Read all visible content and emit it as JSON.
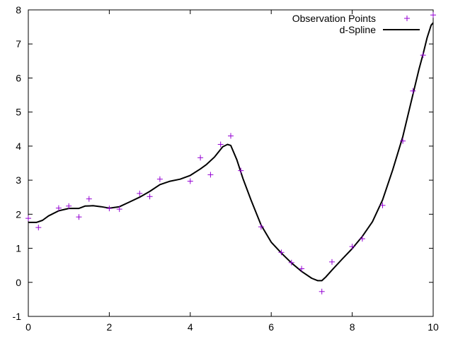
{
  "chart_data": {
    "type": "scatter",
    "title": "",
    "xlabel": "",
    "ylabel": "",
    "xlim": [
      0,
      10
    ],
    "ylim": [
      -1,
      8
    ],
    "x_ticks": [
      "0",
      "2",
      "4",
      "6",
      "8",
      "10"
    ],
    "y_ticks": [
      "-1",
      "0",
      "1",
      "2",
      "3",
      "4",
      "5",
      "6",
      "7",
      "8"
    ],
    "grid": false,
    "legend_position": "top-right",
    "colors": {
      "points": "#9400d3",
      "line": "#000000"
    },
    "series": [
      {
        "name": "Observation Points",
        "type": "scatter",
        "x": [
          0,
          0.25,
          0.75,
          1.0,
          1.25,
          1.5,
          2.0,
          2.25,
          2.75,
          3.0,
          3.25,
          4.0,
          4.25,
          4.5,
          4.75,
          5.0,
          5.25,
          5.75,
          6.25,
          6.5,
          6.75,
          7.25,
          7.5,
          8.0,
          8.25,
          8.75,
          9.25,
          9.5,
          9.75,
          10.0
        ],
        "y": [
          1.88,
          1.61,
          2.18,
          2.24,
          1.92,
          2.45,
          2.17,
          2.15,
          2.61,
          2.52,
          3.03,
          2.97,
          3.66,
          3.16,
          4.05,
          4.3,
          3.28,
          1.63,
          0.88,
          0.58,
          0.4,
          -0.27,
          0.6,
          1.05,
          1.28,
          2.26,
          4.15,
          5.62,
          6.67,
          7.85
        ]
      },
      {
        "name": "d-Spline",
        "type": "line",
        "x": [
          0,
          0.2,
          0.35,
          0.5,
          0.75,
          1.0,
          1.25,
          1.4,
          1.6,
          1.8,
          2.0,
          2.25,
          2.5,
          2.75,
          3.0,
          3.25,
          3.5,
          3.75,
          4.0,
          4.25,
          4.4,
          4.6,
          4.8,
          4.92,
          5.0,
          5.15,
          5.3,
          5.5,
          5.75,
          6.0,
          6.25,
          6.5,
          6.75,
          7.0,
          7.15,
          7.25,
          7.35,
          7.5,
          7.75,
          8.0,
          8.25,
          8.5,
          8.75,
          9.0,
          9.25,
          9.5,
          9.65,
          9.75,
          9.85,
          9.95,
          10.0
        ],
        "y": [
          1.76,
          1.76,
          1.82,
          1.95,
          2.1,
          2.17,
          2.17,
          2.24,
          2.25,
          2.22,
          2.18,
          2.22,
          2.36,
          2.5,
          2.67,
          2.87,
          2.97,
          3.03,
          3.14,
          3.33,
          3.46,
          3.68,
          3.98,
          4.05,
          4.02,
          3.6,
          3.05,
          2.42,
          1.68,
          1.18,
          0.86,
          0.57,
          0.32,
          0.12,
          0.05,
          0.05,
          0.16,
          0.36,
          0.68,
          0.99,
          1.35,
          1.78,
          2.42,
          3.3,
          4.28,
          5.52,
          6.26,
          6.7,
          7.18,
          7.55,
          7.62
        ]
      }
    ]
  }
}
